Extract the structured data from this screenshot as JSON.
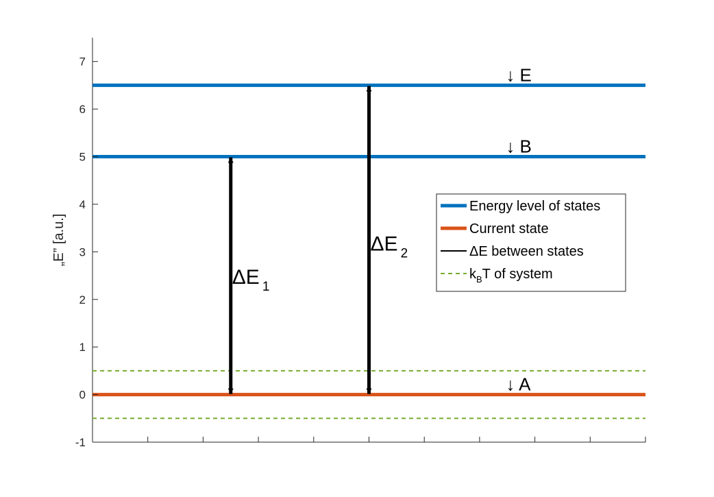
{
  "chart_data": {
    "type": "line",
    "ylabel": "„E” [a.u.]",
    "ylim": [
      -1,
      7.5
    ],
    "yticks": [
      -1,
      0,
      1,
      2,
      3,
      4,
      5,
      6,
      7
    ],
    "xlim": [
      0,
      10
    ],
    "xticks": [
      0,
      1,
      2,
      3,
      4,
      5,
      6,
      7,
      8,
      9,
      10
    ],
    "colors": {
      "energy": "#0072BD",
      "current": "#D95319",
      "delta": "#000000",
      "kbt": "#77AC30"
    },
    "levels": [
      {
        "state": "E",
        "y": 6.5,
        "series": "energy",
        "marker": "↓",
        "label": "E",
        "label_x": 7.6
      },
      {
        "state": "B",
        "y": 5.0,
        "series": "energy",
        "marker": "↓",
        "label": "B",
        "label_x": 7.6
      },
      {
        "state": "A",
        "y": 0.0,
        "series": "current",
        "marker": "↓",
        "label": "A",
        "label_x": 7.6
      }
    ],
    "kbt_lines": [
      0.5,
      -0.5
    ],
    "arrows": [
      {
        "x": 2.5,
        "y_from": 0.0,
        "y_to": 5.0,
        "label": "ΔE",
        "sub": "1",
        "label_y": 2.5
      },
      {
        "x": 5.0,
        "y_from": 0.0,
        "y_to": 6.5,
        "label": "ΔE",
        "sub": "2",
        "label_y": 3.2
      }
    ],
    "legend": {
      "placement": "center-right",
      "entries": [
        {
          "series": "energy",
          "text": "Energy level of states",
          "style": "solid-thick"
        },
        {
          "series": "current",
          "text": "Current state",
          "style": "solid-thick"
        },
        {
          "series": "delta",
          "text": "ΔE between states",
          "style": "solid-thin"
        },
        {
          "series": "kbt",
          "text": "T of system",
          "prefix": "k",
          "sub": "B",
          "style": "dashed"
        }
      ]
    }
  }
}
